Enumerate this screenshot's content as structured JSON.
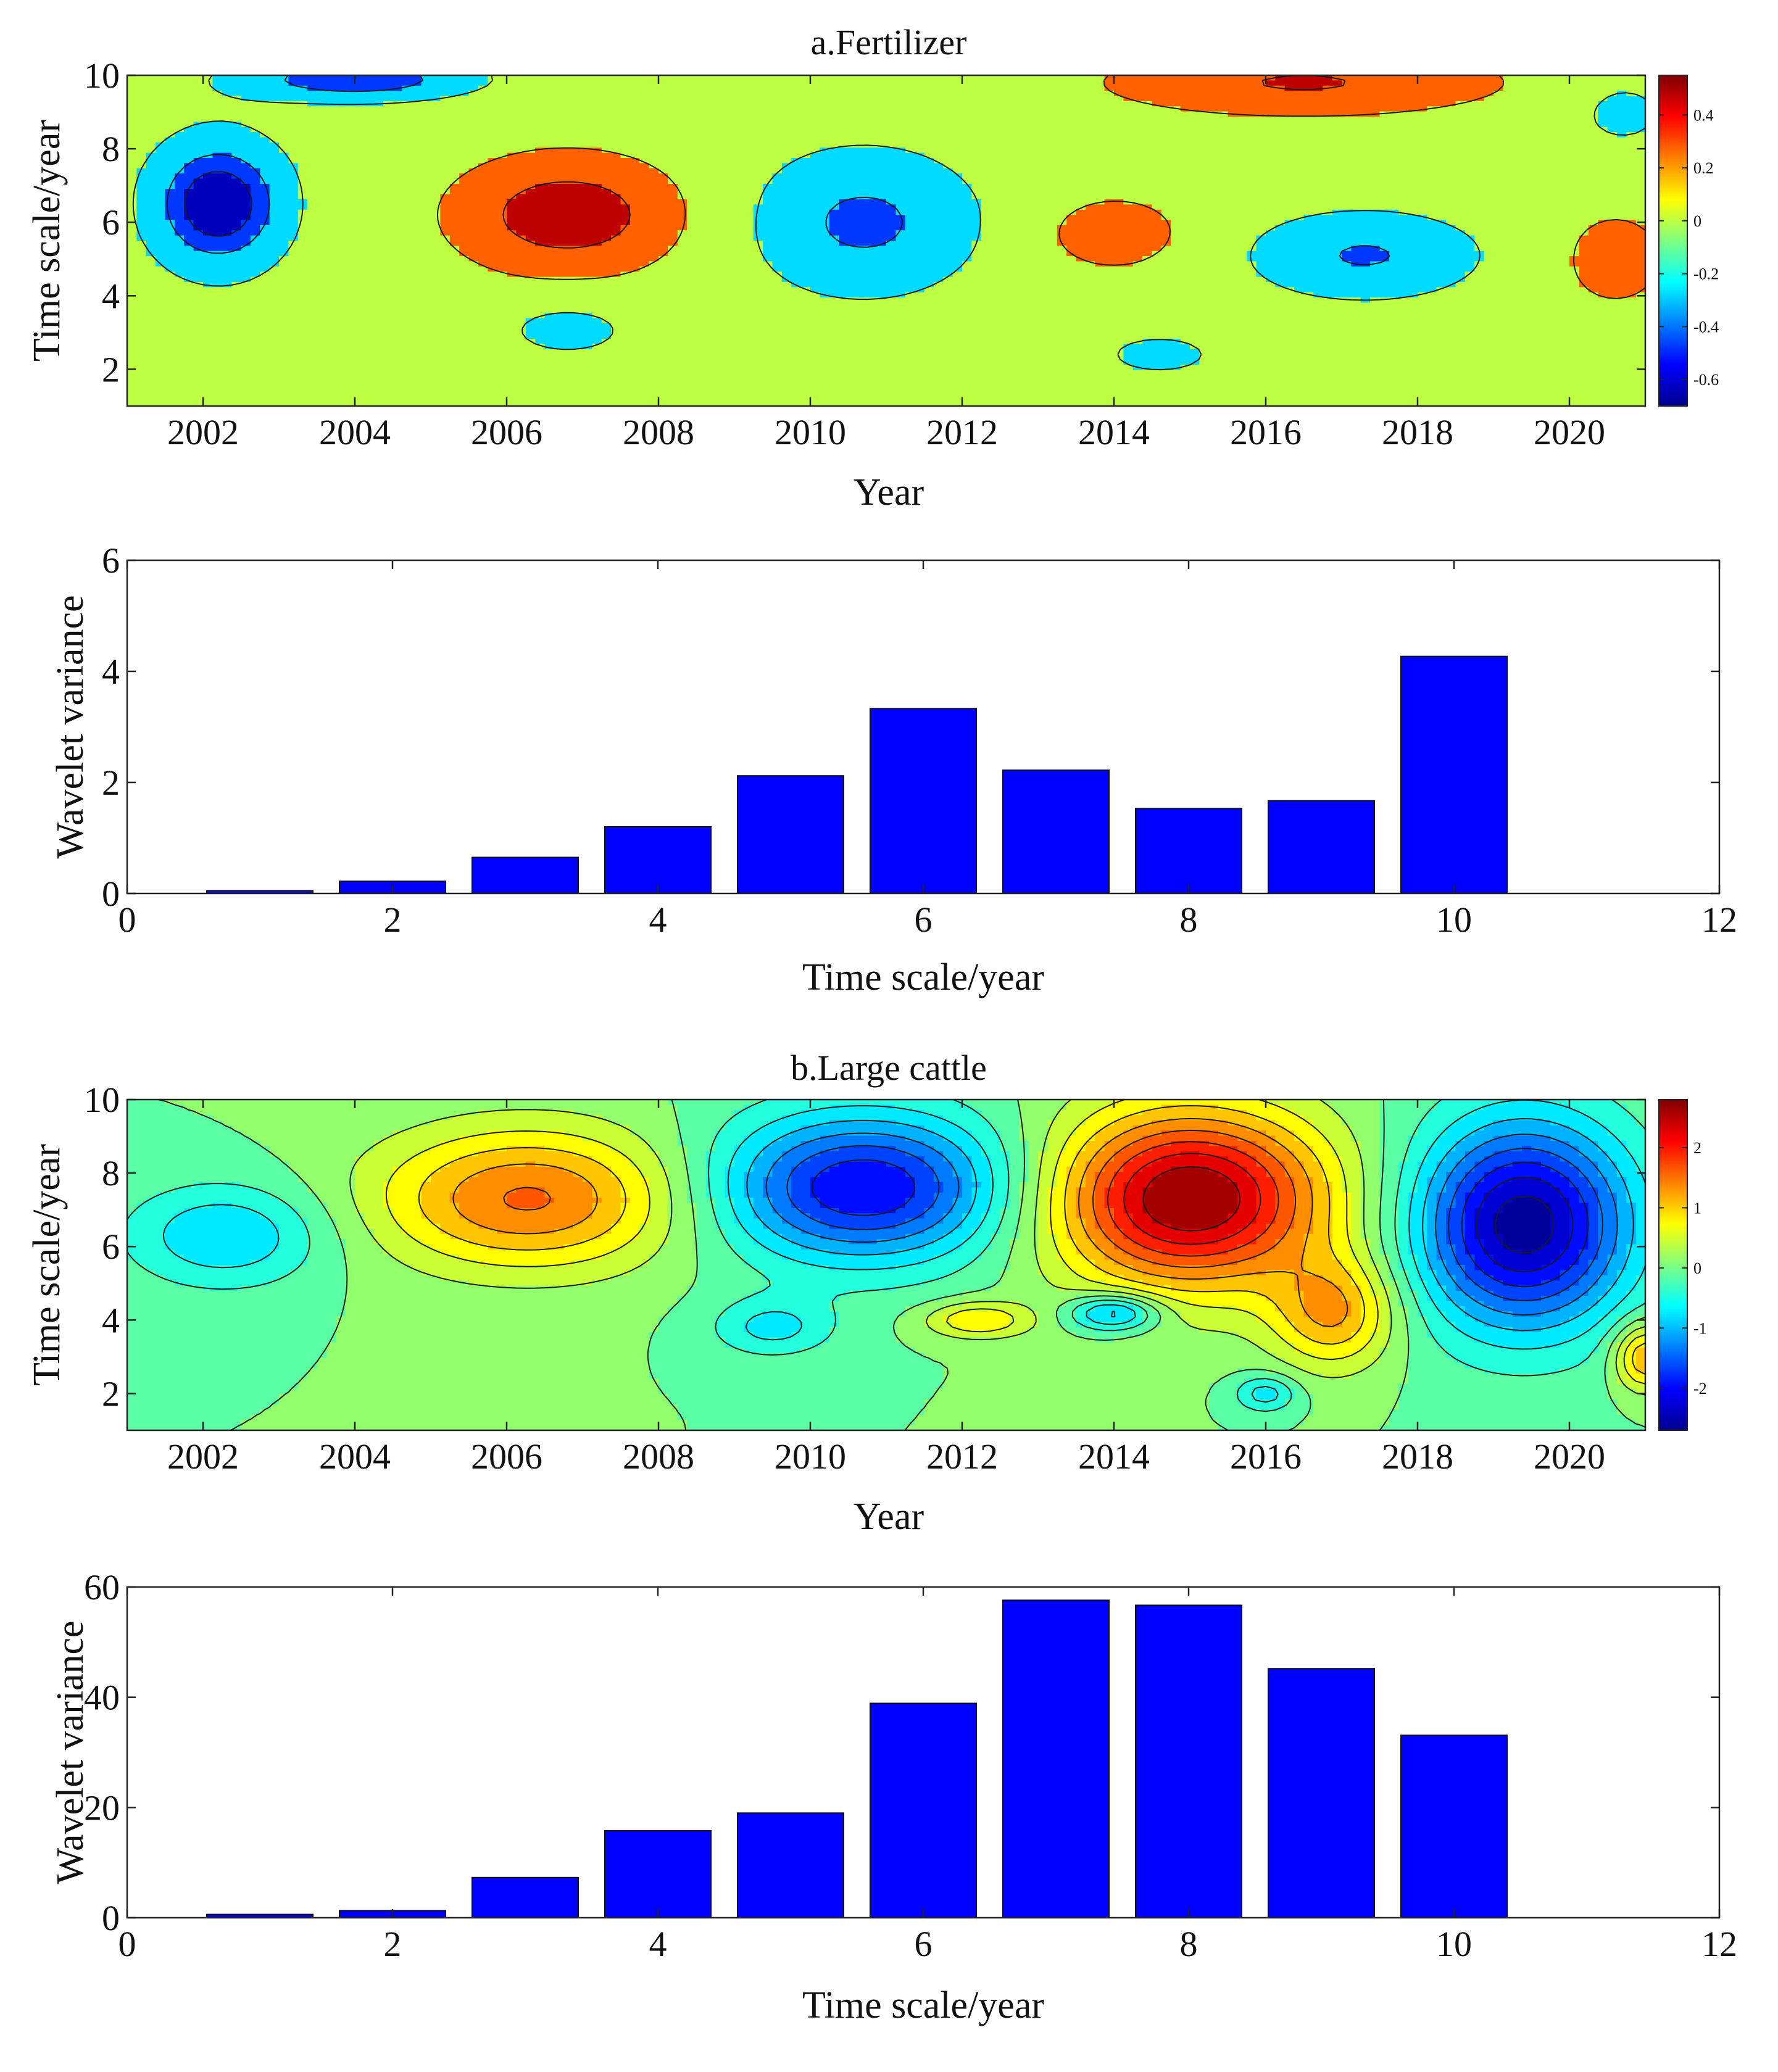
{
  "chart_data": [
    {
      "type": "heatmap",
      "title": "a.Fertilizer",
      "xlabel": "Year",
      "ylabel": "Time scale/year",
      "xlim": [
        2001,
        2021
      ],
      "ylim": [
        1,
        10
      ],
      "xticks": [
        2002,
        2004,
        2006,
        2008,
        2010,
        2012,
        2014,
        2016,
        2018,
        2020
      ],
      "yticks": [
        2,
        4,
        6,
        8,
        10
      ],
      "colorbar": {
        "range": [
          -0.7,
          0.55
        ],
        "ticks": [
          -0.6,
          -0.4,
          -0.2,
          0,
          0.2,
          0.4
        ],
        "tick_labels": [
          "-0.6",
          "-0.4",
          "-0.2",
          "0",
          "0.2",
          "0.4"
        ]
      },
      "contour_levels": [
        -0.55,
        -0.4,
        -0.15,
        0.15,
        0.4
      ],
      "features": [
        {
          "year": 2002.2,
          "scale": 6.5,
          "value": -0.7,
          "sx": 0.9,
          "sy": 1.8
        },
        {
          "year": 2004.0,
          "scale": 9.9,
          "value": -0.55,
          "sx": 1.6,
          "sy": 0.6
        },
        {
          "year": 2006.8,
          "scale": 6.2,
          "value": 0.55,
          "sx": 1.5,
          "sy": 1.6
        },
        {
          "year": 2010.7,
          "scale": 6.0,
          "value": -0.45,
          "sx": 1.5,
          "sy": 2.0
        },
        {
          "year": 2014.0,
          "scale": 5.7,
          "value": 0.33,
          "sx": 0.9,
          "sy": 1.0
        },
        {
          "year": 2016.5,
          "scale": 9.8,
          "value": 0.42,
          "sx": 2.6,
          "sy": 0.9
        },
        {
          "year": 2017.3,
          "scale": 5.1,
          "value": -0.42,
          "sx": 1.5,
          "sy": 1.2
        },
        {
          "year": 2020.6,
          "scale": 5.0,
          "value": 0.3,
          "sx": 0.7,
          "sy": 1.3
        },
        {
          "year": 2006.8,
          "scale": 3.1,
          "value": -0.25,
          "sx": 0.9,
          "sy": 0.8
        },
        {
          "year": 2014.6,
          "scale": 2.4,
          "value": -0.24,
          "sx": 0.8,
          "sy": 0.6
        },
        {
          "year": 2020.7,
          "scale": 9.0,
          "value": -0.25,
          "sx": 0.6,
          "sy": 0.9
        }
      ]
    },
    {
      "type": "bar",
      "title": "",
      "xlabel": "Time scale/year",
      "ylabel": "Wavelet variance",
      "xlim": [
        0,
        12
      ],
      "ylim": [
        0,
        6
      ],
      "xticks": [
        0,
        2,
        4,
        6,
        8,
        10,
        12
      ],
      "yticks": [
        0,
        2,
        4,
        6
      ],
      "categories": [
        1,
        2,
        3,
        4,
        5,
        6,
        7,
        8,
        9,
        10
      ],
      "values": [
        0.05,
        0.22,
        0.65,
        1.2,
        2.12,
        3.33,
        2.22,
        1.53,
        1.67,
        4.27
      ],
      "color": "#0000ff"
    },
    {
      "type": "heatmap",
      "title": "b.Large cattle",
      "xlabel": "Year",
      "ylabel": "Time scale/year",
      "xlim": [
        2001,
        2021
      ],
      "ylim": [
        1,
        10
      ],
      "xticks": [
        2002,
        2004,
        2006,
        2008,
        2010,
        2012,
        2014,
        2016,
        2018,
        2020
      ],
      "yticks": [
        2,
        4,
        6,
        8,
        10
      ],
      "colorbar": {
        "range": [
          -2.7,
          2.8
        ],
        "ticks": [
          -2,
          -1,
          0,
          1,
          2
        ],
        "tick_labels": [
          "-2",
          "-1",
          "0",
          "1",
          "2"
        ]
      },
      "contour_levels": [
        -2.4,
        -2.1,
        -1.8,
        -1.5,
        -1.2,
        -0.9,
        -0.6,
        -0.3,
        0,
        0.3,
        0.6,
        0.9,
        1.2,
        1.5,
        1.8,
        2.1,
        2.4
      ],
      "features": [
        {
          "year": 2006.3,
          "scale": 7.3,
          "value": 1.55,
          "sx": 2.0,
          "sy": 1.9
        },
        {
          "year": 2002.3,
          "scale": 6.3,
          "value": -0.9,
          "sx": 1.3,
          "sy": 1.4
        },
        {
          "year": 2010.7,
          "scale": 7.6,
          "value": -2.1,
          "sx": 1.9,
          "sy": 2.0
        },
        {
          "year": 2015.0,
          "scale": 7.3,
          "value": 2.75,
          "sx": 1.8,
          "sy": 2.4
        },
        {
          "year": 2016.9,
          "scale": 4.2,
          "value": 1.2,
          "sx": 0.8,
          "sy": 1.5
        },
        {
          "year": 2019.4,
          "scale": 6.6,
          "value": -2.6,
          "sx": 1.4,
          "sy": 2.8
        },
        {
          "year": 2012.2,
          "scale": 4.0,
          "value": 0.9,
          "sx": 0.7,
          "sy": 0.5
        },
        {
          "year": 2014.0,
          "scale": 4.2,
          "value": -1.3,
          "sx": 0.6,
          "sy": 0.5
        },
        {
          "year": 2009.5,
          "scale": 3.8,
          "value": -0.7,
          "sx": 0.8,
          "sy": 0.8
        },
        {
          "year": 2021.0,
          "scale": 3.0,
          "value": 1.3,
          "sx": 0.4,
          "sy": 0.9
        },
        {
          "year": 2016.0,
          "scale": 2.0,
          "value": -0.8,
          "sx": 0.4,
          "sy": 0.5
        }
      ]
    },
    {
      "type": "bar",
      "title": "",
      "xlabel": "Time scale/year",
      "ylabel": "Wavelet variance",
      "xlim": [
        0,
        12
      ],
      "ylim": [
        0,
        60
      ],
      "xticks": [
        0,
        2,
        4,
        6,
        8,
        10,
        12
      ],
      "yticks": [
        0,
        20,
        40,
        60
      ],
      "categories": [
        1,
        2,
        3,
        4,
        5,
        6,
        7,
        8,
        9,
        10
      ],
      "values": [
        0.6,
        1.3,
        7.3,
        15.8,
        19.0,
        38.9,
        57.6,
        56.7,
        45.2,
        33.1
      ],
      "color": "#0000ff"
    }
  ]
}
